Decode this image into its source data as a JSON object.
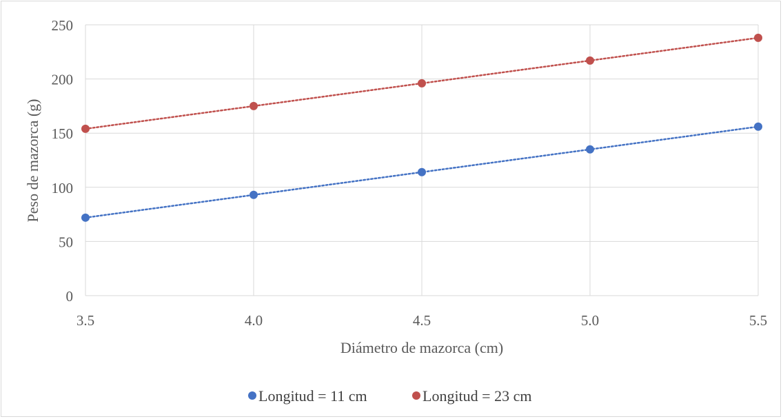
{
  "chart_data": {
    "type": "scatter",
    "title": "",
    "xlabel": "Diámetro de mazorca (cm)",
    "ylabel": "Peso de mazorca (g)",
    "xlim": [
      3.5,
      5.5
    ],
    "ylim": [
      0,
      250
    ],
    "x_ticks": [
      "3.5",
      "4.0",
      "4.5",
      "5.0",
      "5.5"
    ],
    "y_ticks": [
      "0",
      "50",
      "100",
      "150",
      "200",
      "250"
    ],
    "grid": true,
    "legend_position": "bottom",
    "trendline": "linear, dotted",
    "series": [
      {
        "name": "Longitud = 11 cm",
        "color": "#4472c4",
        "x": [
          3.5,
          4.0,
          4.5,
          5.0,
          5.5
        ],
        "y": [
          72,
          93,
          114,
          135,
          156
        ]
      },
      {
        "name": "Longitud = 23 cm",
        "color": "#c0504d",
        "x": [
          3.5,
          4.0,
          4.5,
          5.0,
          5.5
        ],
        "y": [
          154,
          175,
          196,
          217,
          238
        ]
      }
    ]
  }
}
